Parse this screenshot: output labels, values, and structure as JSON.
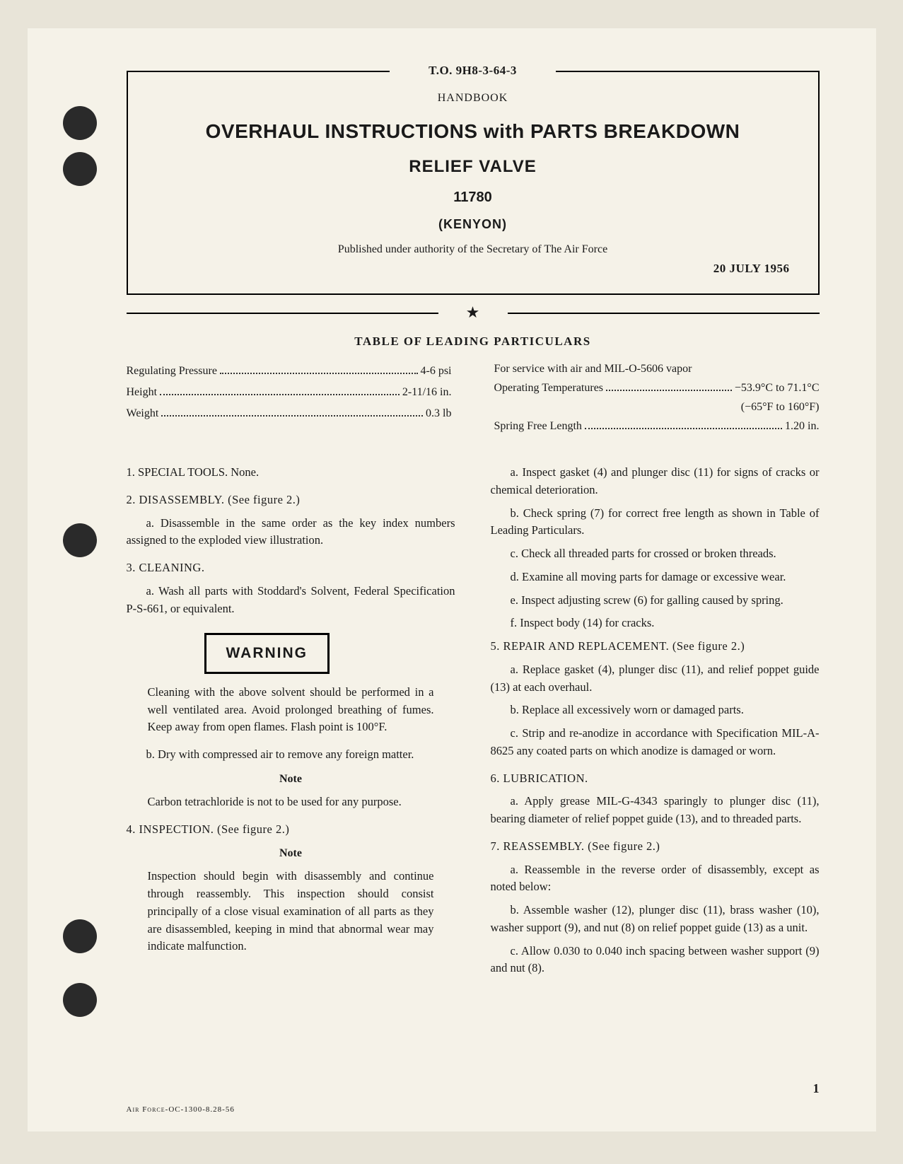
{
  "header": {
    "to_number": "T.O. 9H8-3-64-3",
    "handbook_label": "HANDBOOK",
    "main_title": "OVERHAUL INSTRUCTIONS with PARTS BREAKDOWN",
    "sub_title": "RELIEF VALVE",
    "part_number": "11780",
    "manufacturer": "(KENYON)",
    "authority": "Published under authority of the Secretary of The Air Force",
    "pub_date": "20 JULY 1956"
  },
  "table_particulars": {
    "title": "TABLE OF LEADING PARTICULARS",
    "left": [
      {
        "label": "Regulating Pressure",
        "value": "4-6 psi"
      },
      {
        "label": "Height",
        "value": "2-11/16 in."
      },
      {
        "label": "Weight",
        "value": "0.3 lb"
      }
    ],
    "right": {
      "service_note": "For service with air and MIL-O-5606 vapor",
      "temp_label": "Operating Temperatures",
      "temp_value": "−53.9°C to 71.1°C",
      "temp_sub": "(−65°F to 160°F)",
      "spring_label": "Spring Free Length",
      "spring_value": "1.20 in."
    }
  },
  "body": {
    "left": {
      "s1": "1.  SPECIAL TOOLS.  None.",
      "s2": "2.  DISASSEMBLY.  (See figure 2.)",
      "s2a": "a. Disassemble in the same order as the key index numbers assigned to the exploded view illustration.",
      "s3": "3.  CLEANING.",
      "s3a": "a. Wash all parts with Stoddard's Solvent, Federal Specification P-S-661, or equivalent.",
      "warning_label": "WARNING",
      "warning_text": "Cleaning with the above solvent should be performed in a well ventilated area. Avoid prolonged breathing of fumes. Keep away from open flames. Flash point is 100°F.",
      "s3b": "b. Dry with compressed air to remove any foreign matter.",
      "note1_label": "Note",
      "note1_text": "Carbon tetrachloride is not to be used for any purpose.",
      "s4": "4.  INSPECTION.  (See figure 2.)",
      "note2_label": "Note",
      "note2_text": "Inspection should begin with disassembly and continue through reassembly. This inspection should consist principally of a close visual examination of all parts as they are disassembled, keeping in mind that abnormal wear may indicate malfunction."
    },
    "right": {
      "s4a": "a. Inspect gasket (4) and plunger disc (11) for signs of cracks or chemical deterioration.",
      "s4b": "b. Check spring (7) for correct free length as shown in Table of Leading Particulars.",
      "s4c": "c. Check all threaded parts for crossed or broken threads.",
      "s4d": "d. Examine all moving parts for damage or excessive wear.",
      "s4e": "e. Inspect adjusting screw (6) for galling caused by spring.",
      "s4f": "f. Inspect body (14) for cracks.",
      "s5": "5.  REPAIR AND REPLACEMENT.  (See figure 2.)",
      "s5a": "a. Replace gasket (4), plunger disc (11), and relief poppet guide (13) at each overhaul.",
      "s5b": "b. Replace all excessively worn or damaged parts.",
      "s5c": "c. Strip and re-anodize in accordance with Specification MIL-A-8625 any coated parts on which anodize is damaged or worn.",
      "s6": "6.  LUBRICATION.",
      "s6a": "a. Apply grease MIL-G-4343 sparingly to plunger disc (11), bearing diameter of relief poppet guide (13), and to threaded parts.",
      "s7": "7.  REASSEMBLY.  (See figure 2.)",
      "s7a": "a. Reassemble in the reverse order of disassembly, except as noted below:",
      "s7b": "b. Assemble washer (12), plunger disc (11), brass washer (10), washer support (9), and nut (8) on relief poppet guide (13) as a unit.",
      "s7c": "c. Allow 0.030 to 0.040 inch spacing between washer support (9) and nut (8)."
    }
  },
  "footer": {
    "page_number": "1",
    "footer_text": "AIR FORCE-OC-1300-8.28-56"
  }
}
